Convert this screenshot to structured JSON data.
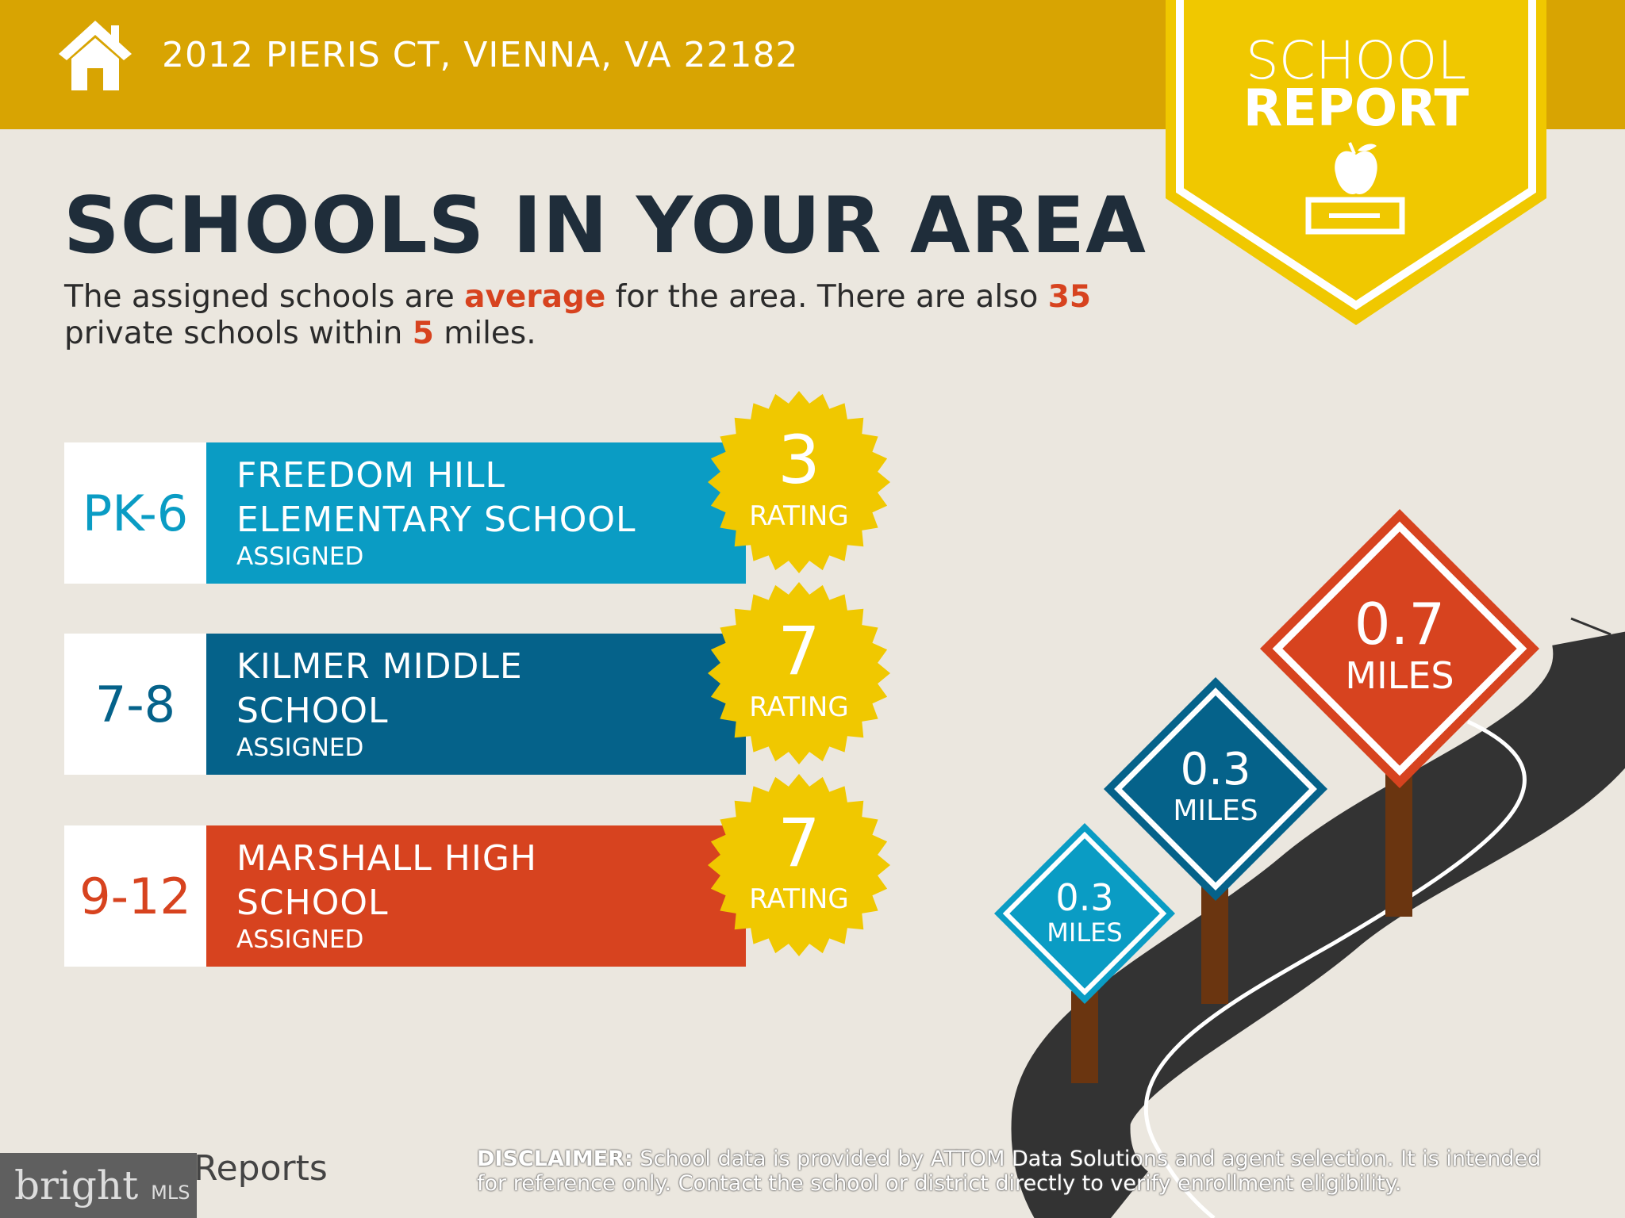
{
  "header": {
    "address": "2012 PIERIS CT, VIENNA, VA 22182",
    "icon": "home-icon"
  },
  "badge": {
    "line1": "SCHOOL",
    "line2": "REPORT",
    "icon": "apple-on-book-icon"
  },
  "title": "SCHOOLS IN YOUR AREA",
  "subtitle": {
    "p1": "The assigned schools are ",
    "quality": "average",
    "p2": " for the area. There are also ",
    "private_count": "35",
    "p3": " private schools within ",
    "miles": "5",
    "p4": " miles."
  },
  "schools": [
    {
      "grades": "PK-6",
      "name1": "FREEDOM HILL",
      "name2": "ELEMENTARY SCHOOL",
      "status": "ASSIGNED",
      "rating": "3",
      "rating_label": "RATING",
      "distance": "0.3",
      "distance_unit": "MILES",
      "color": "#0a9cc4"
    },
    {
      "grades": "7-8",
      "name1": "KILMER MIDDLE",
      "name2": "SCHOOL",
      "status": "ASSIGNED",
      "rating": "7",
      "rating_label": "RATING",
      "distance": "0.3",
      "distance_unit": "MILES",
      "color": "#05628a"
    },
    {
      "grades": "9-12",
      "name1": "MARSHALL HIGH",
      "name2": "SCHOOL",
      "status": "ASSIGNED",
      "rating": "7",
      "rating_label": "RATING",
      "distance": "0.7",
      "distance_unit": "MILES",
      "color": "#d7431f"
    }
  ],
  "colors": {
    "header": "#d8a402",
    "badge": "#f0c800",
    "burst": "#f0c800",
    "background": "#ebe7df",
    "title": "#1f2d3a"
  },
  "footer": {
    "reports": "Reports",
    "brand": "bright",
    "brand_suffix": "MLS",
    "disclaimer_label": "DISCLAIMER:",
    "disclaimer": " School data is provided by ATTOM Data Solutions and agent selection. It is intended for reference only. Contact the school or district directly to verify enrollment eligibility."
  }
}
